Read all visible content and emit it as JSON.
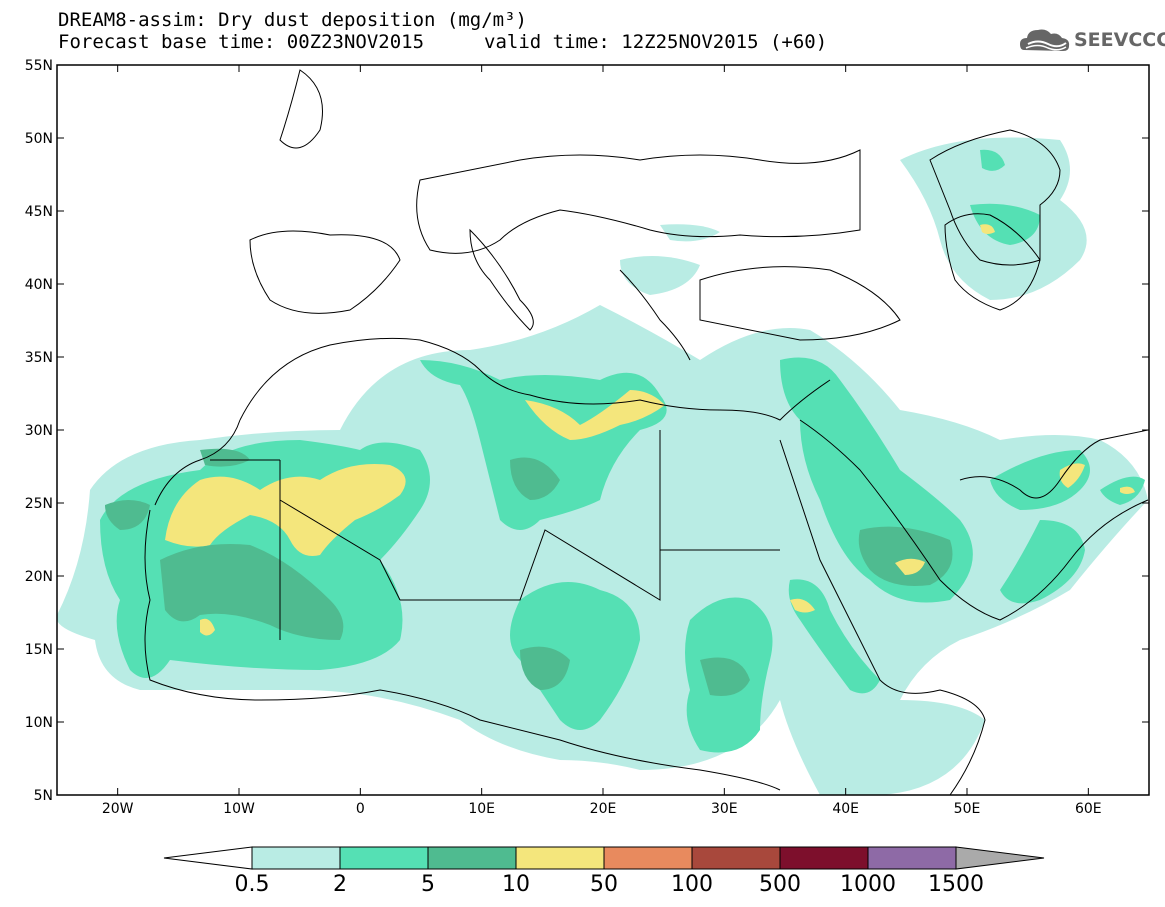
{
  "header": {
    "title_line1": "DREAM8-assim: Dry dust deposition (mg/m³)",
    "base_time": "Forecast base time: 00Z23NOV2015",
    "valid_time": "valid time: 12Z25NOV2015 (+60)",
    "logo_text": "SEEVCCC"
  },
  "axes": {
    "lat_labels": [
      "55N",
      "50N",
      "45N",
      "40N",
      "35N",
      "30N",
      "25N",
      "20N",
      "15N",
      "10N",
      "5N"
    ],
    "lat_values": [
      55,
      50,
      45,
      40,
      35,
      30,
      25,
      20,
      15,
      10,
      5
    ],
    "lon_labels": [
      "20W",
      "10W",
      "0",
      "10E",
      "20E",
      "30E",
      "40E",
      "50E",
      "60E"
    ],
    "lon_values": [
      -20,
      -10,
      0,
      10,
      20,
      30,
      40,
      50,
      60
    ],
    "lon_range": [
      -25,
      65
    ],
    "lat_range": [
      5,
      55
    ]
  },
  "colorbar": {
    "labels": [
      "0.5",
      "2",
      "5",
      "10",
      "50",
      "100",
      "500",
      "1000",
      "1500"
    ],
    "colors": [
      "#b9ece4",
      "#55e0b4",
      "#4fbb90",
      "#f4e67c",
      "#e88a5e",
      "#a8483c",
      "#7d0f2c",
      "#8e6aa6"
    ],
    "under_color": "#ffffff",
    "over_color": "#aaaaaa"
  },
  "legend_colors": {
    "level_05_2": "#b9ece4",
    "level_2_5": "#55e0b4",
    "level_5_10": "#4fbb90",
    "level_10_50": "#f4e67c"
  }
}
